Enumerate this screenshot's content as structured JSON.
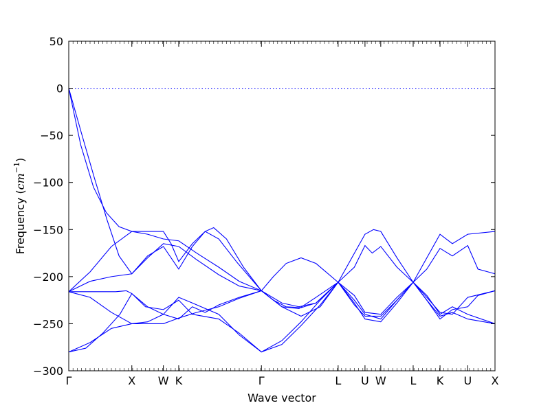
{
  "chart_data": {
    "type": "line",
    "title": "",
    "xlabel": "Wave vector",
    "ylabel": "Frequency",
    "ylabel_unit": "cm",
    "ylabel_unit_exponent": "−1",
    "ylim": [
      -300,
      50
    ],
    "yticks": [
      50,
      0,
      -50,
      -100,
      -150,
      -200,
      -250,
      -300
    ],
    "ytick_labels": [
      "50",
      "0",
      "−50",
      "−100",
      "−150",
      "−200",
      "−250",
      "−300"
    ],
    "xlim": [
      0,
      1
    ],
    "high_symmetry_points": [
      {
        "label": "Γ",
        "x": 0.0
      },
      {
        "label": "X",
        "x": 0.148
      },
      {
        "label": "W",
        "x": 0.222
      },
      {
        "label": "K",
        "x": 0.258
      },
      {
        "label": "Γ",
        "x": 0.452
      },
      {
        "label": "L",
        "x": 0.632
      },
      {
        "label": "U",
        "x": 0.695
      },
      {
        "label": "W",
        "x": 0.732
      },
      {
        "label": "L",
        "x": 0.808
      },
      {
        "label": "K",
        "x": 0.871
      },
      {
        "label": "U",
        "x": 0.936
      },
      {
        "label": "X",
        "x": 1.0
      }
    ],
    "reference_line_y": 0,
    "grid": false,
    "series": [
      {
        "values": [
          [
            0.0,
            0
          ],
          [
            0.028,
            -60
          ],
          [
            0.058,
            -105
          ],
          [
            0.088,
            -132
          ],
          [
            0.118,
            -147
          ],
          [
            0.148,
            -152
          ],
          [
            0.222,
            -152
          ],
          [
            0.24,
            -165
          ],
          [
            0.258,
            -184
          ],
          [
            0.29,
            -165
          ],
          [
            0.32,
            -152
          ],
          [
            0.352,
            -160
          ],
          [
            0.395,
            -185
          ],
          [
            0.452,
            -215
          ],
          [
            0.5,
            -228
          ],
          [
            0.54,
            -232
          ],
          [
            0.58,
            -228
          ],
          [
            0.632,
            -206
          ],
          [
            0.695,
            -155
          ],
          [
            0.715,
            -150
          ],
          [
            0.732,
            -152
          ],
          [
            0.77,
            -180
          ],
          [
            0.808,
            -206
          ],
          [
            0.871,
            -155
          ],
          [
            0.9,
            -165
          ],
          [
            0.936,
            -155
          ],
          [
            1.0,
            -152
          ]
        ]
      },
      {
        "values": [
          [
            0.0,
            0
          ],
          [
            0.03,
            -48
          ],
          [
            0.06,
            -95
          ],
          [
            0.09,
            -140
          ],
          [
            0.118,
            -178
          ],
          [
            0.148,
            -197
          ],
          [
            0.185,
            -178
          ],
          [
            0.222,
            -168
          ],
          [
            0.258,
            -192
          ],
          [
            0.29,
            -168
          ],
          [
            0.32,
            -152
          ],
          [
            0.34,
            -148
          ],
          [
            0.37,
            -160
          ],
          [
            0.41,
            -190
          ],
          [
            0.452,
            -215
          ],
          [
            0.5,
            -232
          ],
          [
            0.54,
            -234
          ],
          [
            0.58,
            -222
          ],
          [
            0.632,
            -206
          ],
          [
            0.67,
            -190
          ],
          [
            0.695,
            -167
          ],
          [
            0.712,
            -175
          ],
          [
            0.732,
            -168
          ],
          [
            0.77,
            -190
          ],
          [
            0.808,
            -206
          ],
          [
            0.84,
            -192
          ],
          [
            0.871,
            -170
          ],
          [
            0.9,
            -178
          ],
          [
            0.936,
            -167
          ],
          [
            0.96,
            -192
          ],
          [
            1.0,
            -197
          ]
        ]
      },
      {
        "values": [
          [
            0.0,
            -216
          ],
          [
            0.05,
            -205
          ],
          [
            0.1,
            -200
          ],
          [
            0.148,
            -197
          ],
          [
            0.185,
            -180
          ],
          [
            0.222,
            -165
          ],
          [
            0.258,
            -168
          ],
          [
            0.3,
            -182
          ],
          [
            0.352,
            -198
          ],
          [
            0.4,
            -210
          ],
          [
            0.452,
            -215
          ],
          [
            0.48,
            -200
          ],
          [
            0.51,
            -186
          ],
          [
            0.545,
            -180
          ],
          [
            0.58,
            -186
          ],
          [
            0.632,
            -206
          ],
          [
            0.67,
            -225
          ],
          [
            0.695,
            -240
          ],
          [
            0.732,
            -245
          ],
          [
            0.77,
            -225
          ],
          [
            0.808,
            -206
          ],
          [
            0.84,
            -222
          ],
          [
            0.871,
            -238
          ],
          [
            0.9,
            -240
          ],
          [
            0.936,
            -222
          ],
          [
            1.0,
            -215
          ]
        ]
      },
      {
        "values": [
          [
            0.0,
            -216
          ],
          [
            0.05,
            -195
          ],
          [
            0.1,
            -168
          ],
          [
            0.148,
            -152
          ],
          [
            0.185,
            -155
          ],
          [
            0.222,
            -160
          ],
          [
            0.258,
            -162
          ],
          [
            0.3,
            -175
          ],
          [
            0.352,
            -190
          ],
          [
            0.4,
            -205
          ],
          [
            0.452,
            -215
          ],
          [
            0.48,
            -225
          ],
          [
            0.51,
            -232
          ],
          [
            0.545,
            -233
          ],
          [
            0.58,
            -228
          ],
          [
            0.632,
            -206
          ],
          [
            0.67,
            -228
          ],
          [
            0.695,
            -245
          ],
          [
            0.732,
            -248
          ],
          [
            0.77,
            -228
          ],
          [
            0.808,
            -206
          ],
          [
            0.84,
            -225
          ],
          [
            0.871,
            -242
          ],
          [
            0.9,
            -238
          ],
          [
            0.936,
            -245
          ],
          [
            1.0,
            -250
          ]
        ]
      },
      {
        "values": [
          [
            0.0,
            -216
          ],
          [
            0.07,
            -216
          ],
          [
            0.11,
            -216
          ],
          [
            0.135,
            -215
          ],
          [
            0.148,
            -218
          ],
          [
            0.18,
            -232
          ],
          [
            0.222,
            -235
          ],
          [
            0.258,
            -225
          ],
          [
            0.29,
            -240
          ],
          [
            0.352,
            -245
          ],
          [
            0.4,
            -260
          ],
          [
            0.452,
            -280
          ],
          [
            0.5,
            -268
          ],
          [
            0.545,
            -248
          ],
          [
            0.59,
            -225
          ],
          [
            0.632,
            -206
          ],
          [
            0.67,
            -220
          ],
          [
            0.695,
            -238
          ],
          [
            0.732,
            -240
          ],
          [
            0.77,
            -222
          ],
          [
            0.808,
            -206
          ],
          [
            0.84,
            -225
          ],
          [
            0.871,
            -245
          ],
          [
            0.9,
            -235
          ],
          [
            0.936,
            -232
          ],
          [
            0.96,
            -220
          ],
          [
            1.0,
            -215
          ]
        ]
      },
      {
        "values": [
          [
            0.0,
            -216
          ],
          [
            0.05,
            -222
          ],
          [
            0.1,
            -238
          ],
          [
            0.148,
            -250
          ],
          [
            0.185,
            -248
          ],
          [
            0.222,
            -240
          ],
          [
            0.258,
            -245
          ],
          [
            0.29,
            -232
          ],
          [
            0.32,
            -238
          ],
          [
            0.352,
            -230
          ],
          [
            0.4,
            -222
          ],
          [
            0.452,
            -215
          ],
          [
            0.5,
            -232
          ],
          [
            0.545,
            -242
          ],
          [
            0.59,
            -232
          ],
          [
            0.632,
            -206
          ],
          [
            0.67,
            -230
          ],
          [
            0.695,
            -242
          ],
          [
            0.732,
            -242
          ],
          [
            0.77,
            -225
          ],
          [
            0.808,
            -206
          ],
          [
            0.84,
            -220
          ],
          [
            0.871,
            -240
          ],
          [
            0.9,
            -232
          ],
          [
            0.936,
            -240
          ],
          [
            1.0,
            -250
          ]
        ]
      },
      {
        "values": [
          [
            0.0,
            -280
          ],
          [
            0.04,
            -276
          ],
          [
            0.08,
            -260
          ],
          [
            0.12,
            -240
          ],
          [
            0.148,
            -218
          ],
          [
            0.185,
            -232
          ],
          [
            0.222,
            -240
          ],
          [
            0.258,
            -222
          ],
          [
            0.29,
            -228
          ],
          [
            0.352,
            -240
          ],
          [
            0.4,
            -262
          ],
          [
            0.452,
            -280
          ],
          [
            0.5,
            -272
          ],
          [
            0.545,
            -252
          ],
          [
            0.59,
            -230
          ],
          [
            0.632,
            -206
          ]
        ]
      },
      {
        "values": [
          [
            0.0,
            -280
          ],
          [
            0.05,
            -270
          ],
          [
            0.1,
            -255
          ],
          [
            0.148,
            -250
          ],
          [
            0.222,
            -250
          ],
          [
            0.258,
            -244
          ],
          [
            0.3,
            -238
          ],
          [
            0.352,
            -232
          ],
          [
            0.4,
            -223
          ],
          [
            0.452,
            -215
          ]
        ]
      }
    ]
  }
}
